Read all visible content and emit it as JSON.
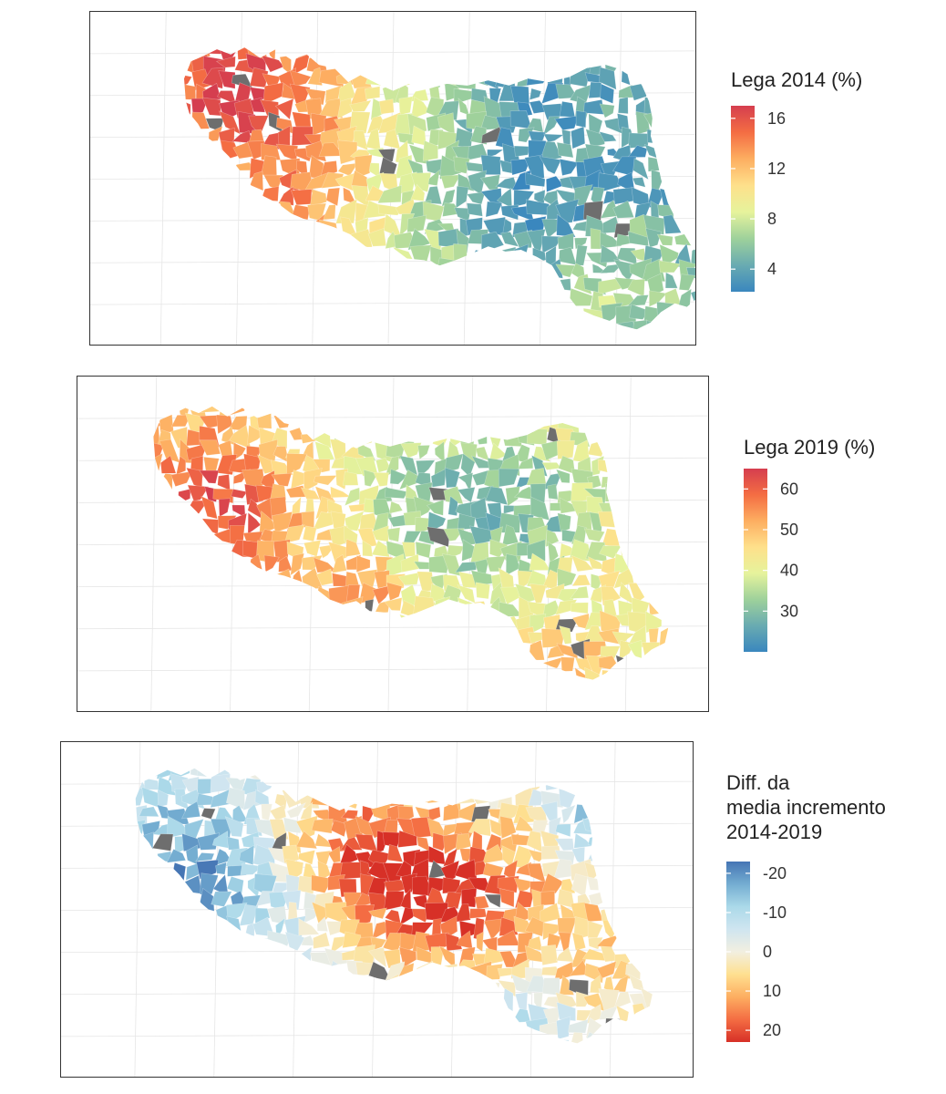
{
  "maps": [
    {
      "id": "lega-2014",
      "legend_title": "Lega 2014 (%)",
      "scale": {
        "min": 2.2,
        "max": 17,
        "ticks": [
          4,
          8,
          12,
          16
        ]
      },
      "palette": [
        "#3a87be",
        "#69abb1",
        "#9ed19b",
        "#e6f39c",
        "#fee08b",
        "#fdae61",
        "#f46d43",
        "#d53e4f"
      ],
      "missing_color": "#6e6e6e"
    },
    {
      "id": "lega-2019",
      "legend_title": "Lega 2019 (%)",
      "scale": {
        "min": 20,
        "max": 65,
        "ticks": [
          30,
          40,
          50,
          60
        ]
      },
      "palette": [
        "#3a87be",
        "#69abb1",
        "#9ed19b",
        "#e6f39c",
        "#fee08b",
        "#fdae61",
        "#f46d43",
        "#d53e4f"
      ],
      "missing_color": "#6e6e6e"
    },
    {
      "id": "diff-2014-2019",
      "legend_title": "Diff. da\nmedia incremento\n2014-2019",
      "scale": {
        "min": -23,
        "max": 23,
        "ticks": [
          -20,
          -10,
          0,
          10,
          20
        ],
        "reversed": true
      },
      "palette": [
        "#d73027",
        "#f46d43",
        "#fdae61",
        "#fee090",
        "#f2efe0",
        "#cfe5f0",
        "#abd9e9",
        "#74add1",
        "#4575b4"
      ],
      "missing_color": "#6e6e6e"
    }
  ]
}
